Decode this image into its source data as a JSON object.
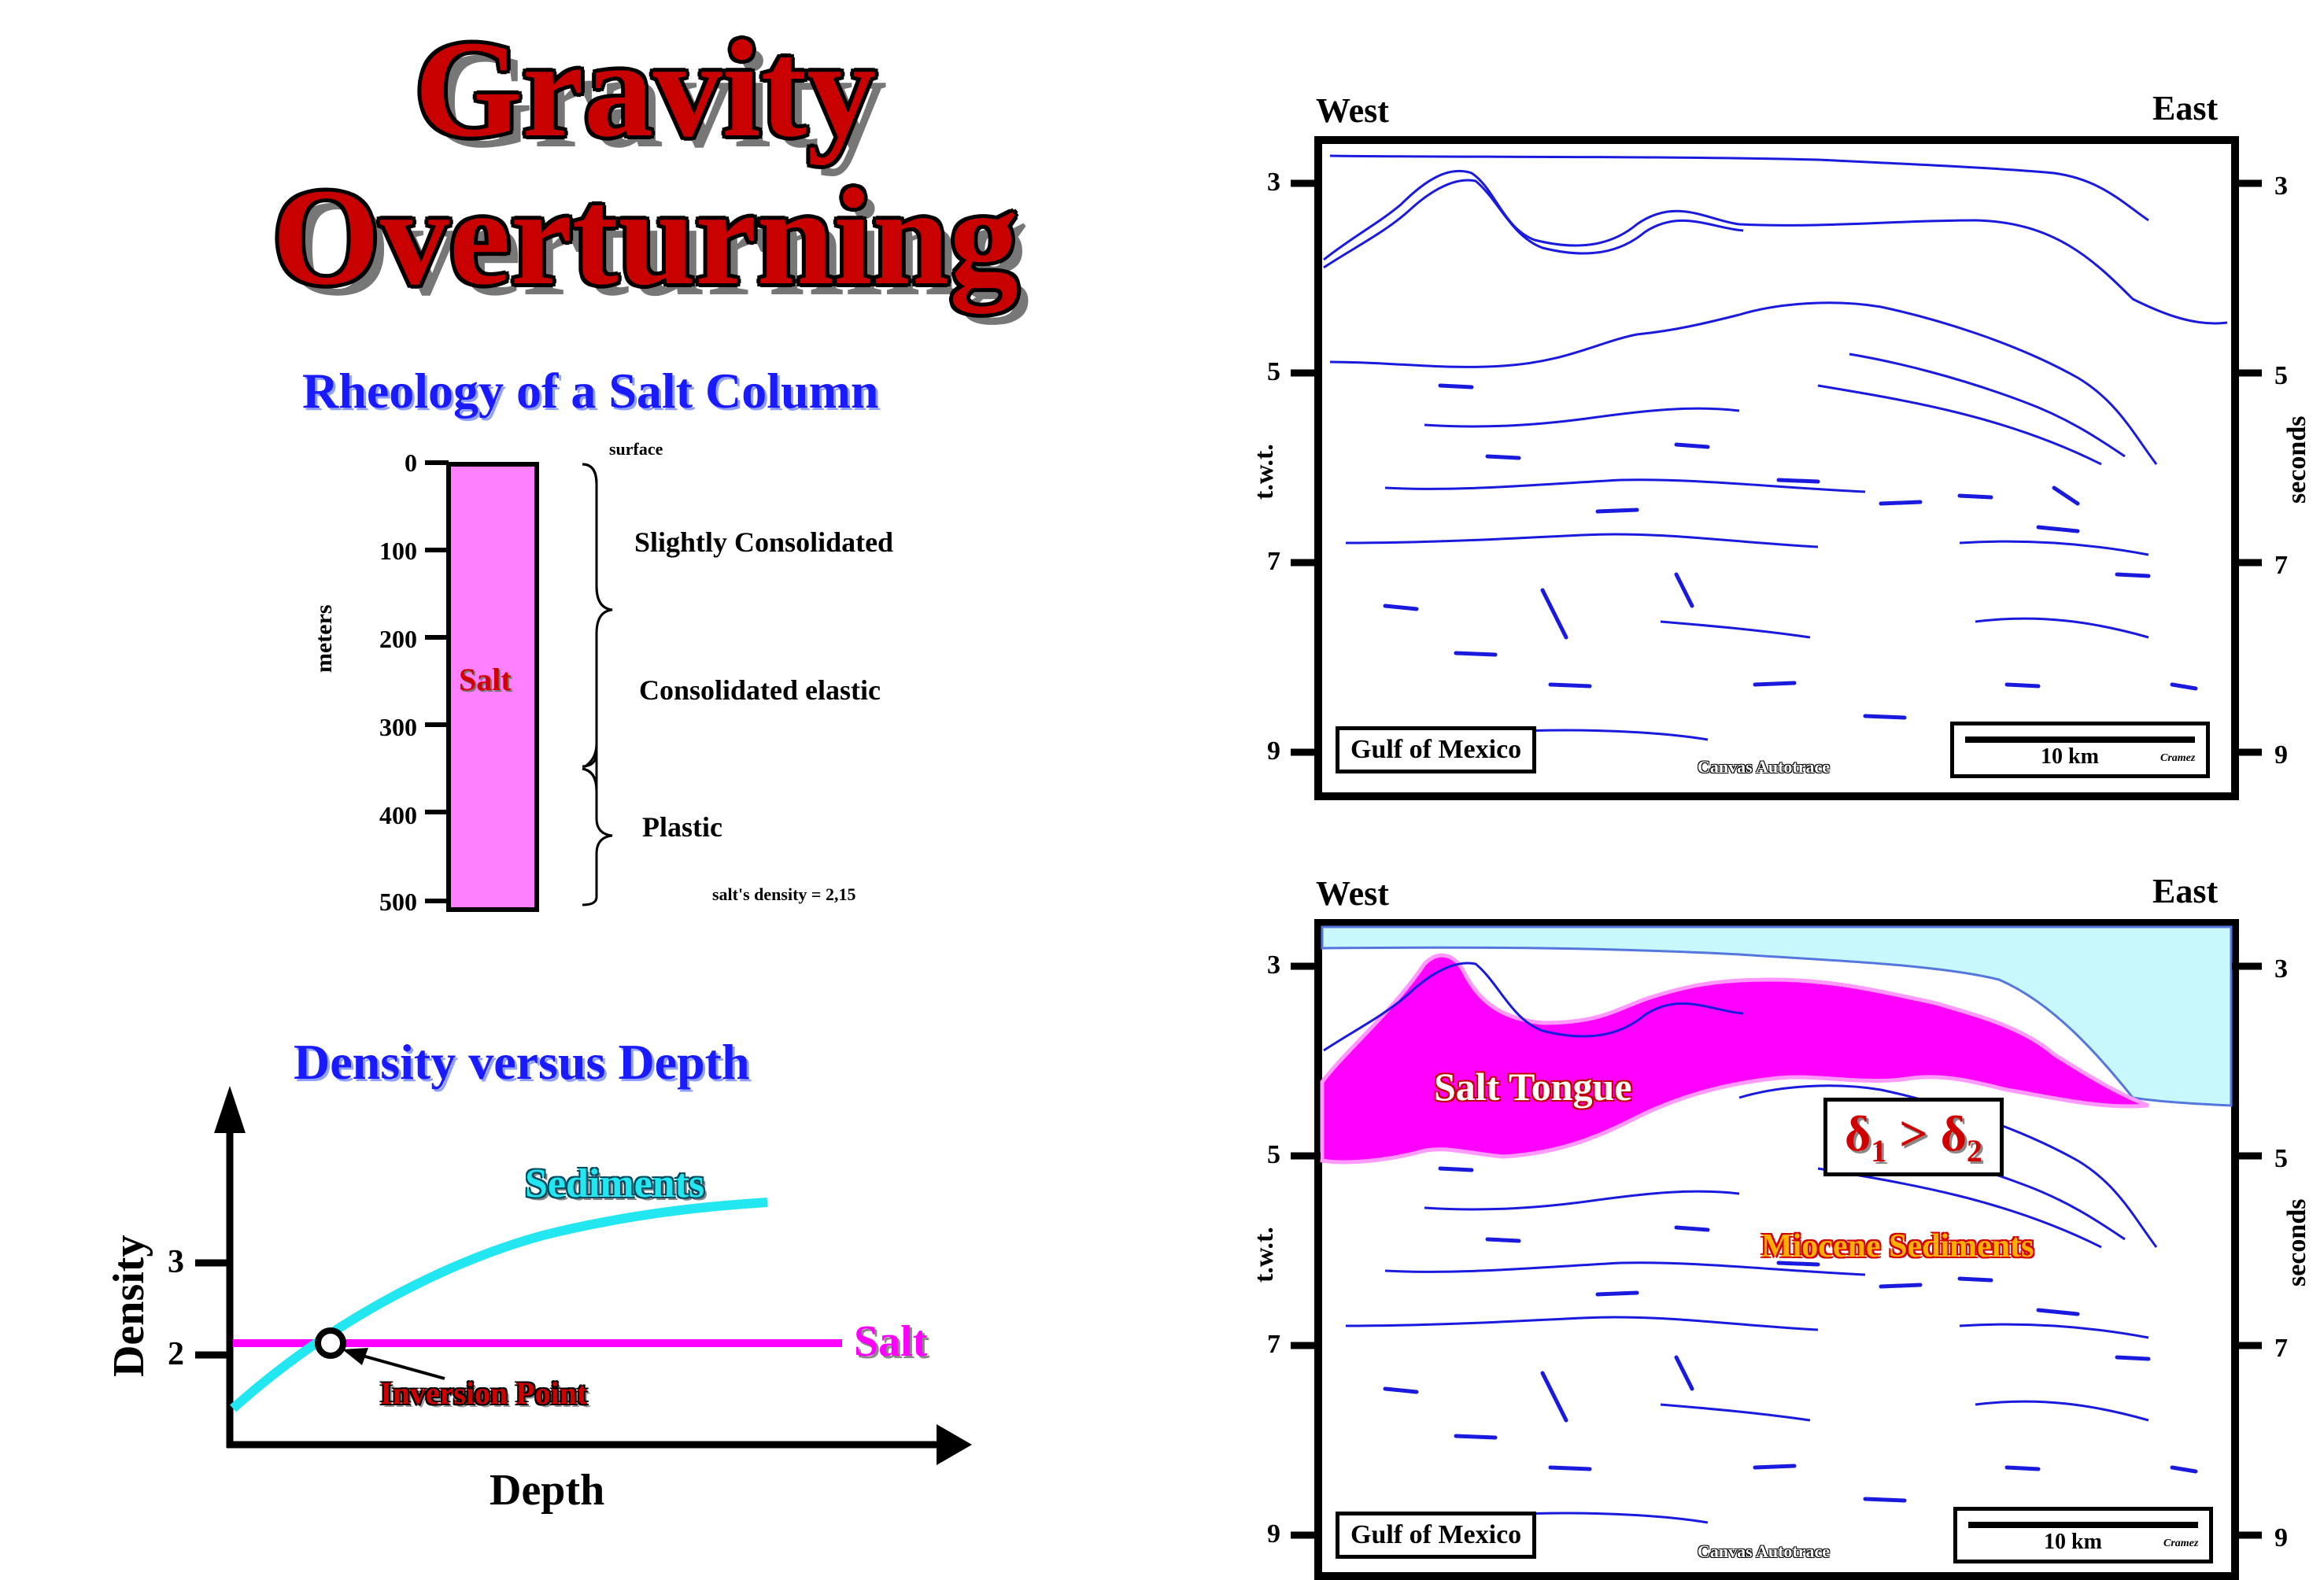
{
  "title": {
    "line1": "Gravity",
    "line2": "Overturning"
  },
  "rheology": {
    "title": "Rheology of a Salt Column",
    "surface": "surface",
    "depth_ticks": [
      "0",
      "100",
      "200",
      "300",
      "400",
      "500"
    ],
    "axis_label": "meters",
    "column_label": "Salt",
    "zones": [
      "Slightly Consolidated",
      "Consolidated elastic",
      "Plastic"
    ],
    "density_note": "salt's density = 2,15",
    "colors": {
      "salt": "#ff80ff"
    }
  },
  "density_chart": {
    "title": "Density versus Depth",
    "ylabel": "Density",
    "xlabel": "Depth",
    "y_ticks": [
      "2",
      "3"
    ],
    "sediments_label": "Sediments",
    "salt_label": "Salt",
    "inversion_label": "Inversion Point",
    "colors": {
      "sediments": "#22e6f0",
      "salt": "#ff00ff"
    }
  },
  "seismic": {
    "west": "West",
    "east": "East",
    "left_axis_label": "t.w.t.",
    "right_axis_label": "seconds",
    "ticks": [
      "3",
      "5",
      "7",
      "9"
    ],
    "location": "Gulf of Mexico",
    "scale": "10 km",
    "author": "Cramez",
    "credit": "Canvas Autotrace",
    "colors": {
      "reflector": "#1a1adf",
      "salt": "#ff00ff",
      "water": "#c8f8fc"
    }
  },
  "interpreted": {
    "salt_tongue": "Salt Tongue",
    "delta": {
      "d": "δ",
      "s1": "1",
      "op": ">",
      "s2": "2"
    },
    "miocene": "Miocene Sediments"
  }
}
